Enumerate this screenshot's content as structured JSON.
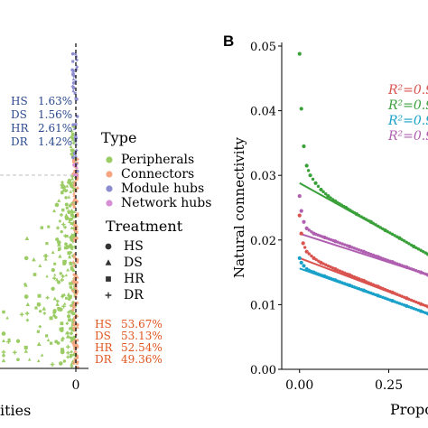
{
  "chart_data": [
    {
      "panel": "",
      "type": "scatter",
      "xlabel": "ities",
      "x_tick_labels": [
        "0"
      ],
      "legend_type": {
        "title": "Type",
        "entries": [
          {
            "label": "Peripherals",
            "color": "#9ccc65"
          },
          {
            "label": "Connectors",
            "color": "#f4a582"
          },
          {
            "label": "Module hubs",
            "color": "#8c8ccf"
          },
          {
            "label": "Network hubs",
            "color": "#d68fd6"
          }
        ]
      },
      "legend_treatment": {
        "title": "Treatment",
        "entries": [
          {
            "label": "HS",
            "shape": "circle"
          },
          {
            "label": "DS",
            "shape": "triangle"
          },
          {
            "label": "HR",
            "shape": "square"
          },
          {
            "label": "DR",
            "shape": "plus"
          }
        ]
      },
      "module_hub_percentages": {
        "color": "#2b4a8f",
        "rows": [
          {
            "treatment": "HS",
            "value": "1.63%"
          },
          {
            "treatment": "DS",
            "value": "1.56%"
          },
          {
            "treatment": "HR",
            "value": "2.61%"
          },
          {
            "treatment": "DR",
            "value": "1.42%"
          }
        ]
      },
      "connector_percentages": {
        "color": "#e0561f",
        "rows": [
          {
            "treatment": "HS",
            "value": "53.67%"
          },
          {
            "treatment": "DS",
            "value": "53.13%"
          },
          {
            "treatment": "HR",
            "value": "52.54%"
          },
          {
            "treatment": "DR",
            "value": "49.36%"
          }
        ]
      }
    },
    {
      "panel": "B",
      "type": "scatter",
      "xlabel": "Propo",
      "ylabel": "Natural connectivity",
      "ylim": [
        0,
        0.05
      ],
      "xlim": [
        -0.05,
        0.36
      ],
      "y_ticks": [
        0.0,
        0.01,
        0.02,
        0.03,
        0.04,
        0.05
      ],
      "y_tick_labels": [
        "0.00",
        "0.01",
        "0.02",
        "0.03",
        "0.04",
        "0.05"
      ],
      "x_ticks": [
        0.0,
        0.25
      ],
      "x_tick_labels": [
        "0.00",
        "0.25"
      ],
      "r2_labels": [
        {
          "text": "R²=0.9",
          "color": "#d9534f"
        },
        {
          "text": "R²=0.9",
          "color": "#3aa13a"
        },
        {
          "text": "R²=0.9",
          "color": "#1aa1c9"
        },
        {
          "text": "R²=0.9",
          "color": "#b05fb0"
        }
      ],
      "series": [
        {
          "color": "#3aa13a",
          "points": [
            [
              0.0,
              0.0488
            ],
            [
              0.005,
              0.0403
            ],
            [
              0.012,
              0.0345
            ],
            [
              0.02,
              0.0315
            ],
            [
              0.03,
              0.03
            ],
            [
              0.045,
              0.0288
            ],
            [
              0.06,
              0.0278
            ],
            [
              0.08,
              0.0268
            ],
            [
              0.1,
              0.026
            ],
            [
              0.13,
              0.025
            ],
            [
              0.16,
              0.024
            ],
            [
              0.2,
              0.0228
            ],
            [
              0.24,
              0.0215
            ],
            [
              0.28,
              0.0203
            ],
            [
              0.32,
              0.019
            ],
            [
              0.36,
              0.0178
            ]
          ],
          "fit": [
            [
              0.0,
              0.0288
            ],
            [
              0.36,
              0.0178
            ]
          ]
        },
        {
          "color": "#b05fb0",
          "points": [
            [
              0.0,
              0.0268
            ],
            [
              0.005,
              0.0245
            ],
            [
              0.012,
              0.0228
            ],
            [
              0.02,
              0.0218
            ],
            [
              0.04,
              0.021
            ],
            [
              0.07,
              0.0204
            ],
            [
              0.1,
              0.0198
            ],
            [
              0.14,
              0.019
            ],
            [
              0.18,
              0.0182
            ],
            [
              0.22,
              0.0174
            ],
            [
              0.26,
              0.0166
            ],
            [
              0.3,
              0.0158
            ],
            [
              0.34,
              0.015
            ],
            [
              0.36,
              0.0146
            ]
          ],
          "fit": [
            [
              0.0,
              0.021
            ],
            [
              0.36,
              0.0146
            ]
          ]
        },
        {
          "color": "#d9534f",
          "points": [
            [
              0.0,
              0.0238
            ],
            [
              0.005,
              0.021
            ],
            [
              0.01,
              0.0195
            ],
            [
              0.02,
              0.0182
            ],
            [
              0.04,
              0.0172
            ],
            [
              0.06,
              0.0165
            ],
            [
              0.1,
              0.0155
            ],
            [
              0.14,
              0.0146
            ],
            [
              0.18,
              0.0137
            ],
            [
              0.22,
              0.0128
            ],
            [
              0.26,
              0.0119
            ],
            [
              0.3,
              0.011
            ],
            [
              0.34,
              0.0101
            ],
            [
              0.36,
              0.0097
            ]
          ],
          "fit": [
            [
              0.0,
              0.0172
            ],
            [
              0.36,
              0.0097
            ]
          ]
        },
        {
          "color": "#1aa1c9",
          "points": [
            [
              0.0,
              0.0172
            ],
            [
              0.005,
              0.0165
            ],
            [
              0.012,
              0.016
            ],
            [
              0.02,
              0.0155
            ],
            [
              0.04,
              0.015
            ],
            [
              0.07,
              0.0144
            ],
            [
              0.1,
              0.0138
            ],
            [
              0.14,
              0.013
            ],
            [
              0.18,
              0.0122
            ],
            [
              0.22,
              0.0114
            ],
            [
              0.26,
              0.0106
            ],
            [
              0.3,
              0.0098
            ],
            [
              0.34,
              0.009
            ],
            [
              0.36,
              0.0086
            ]
          ],
          "fit": [
            [
              0.0,
              0.0156
            ],
            [
              0.36,
              0.0086
            ]
          ]
        }
      ]
    }
  ]
}
